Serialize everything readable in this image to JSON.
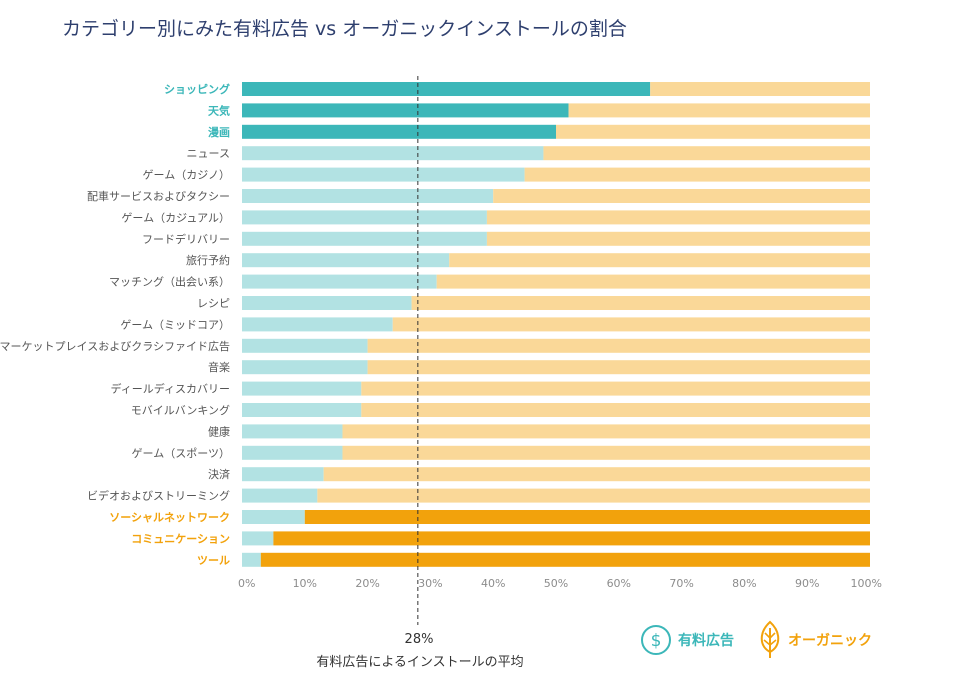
{
  "title": "カテゴリー別にみた有料広告 vs オーガニックインストールの割合",
  "average": {
    "value_label": "28%",
    "text": "有料広告によるインストールの平均",
    "value": 28
  },
  "legend": {
    "paid": "有料広告",
    "organic": "オーガニック"
  },
  "colors": {
    "title": "#2e3f6e",
    "paid_light": "#b2e2e3",
    "paid_dark": "#3cb7b9",
    "organic_light": "#fad898",
    "organic_dark": "#f2a20c",
    "label_default": "#555555"
  },
  "chart_data": {
    "type": "bar",
    "orientation": "horizontal",
    "stacked": true,
    "title": "カテゴリー別にみた有料広告 vs オーガニックインストールの割合",
    "xlim": [
      0,
      100
    ],
    "x_ticks": [
      "0%",
      "10%",
      "20%",
      "30%",
      "40%",
      "50%",
      "60%",
      "70%",
      "80%",
      "90%",
      "100%"
    ],
    "reference_line": {
      "value": 28,
      "label": "28%"
    },
    "categories": [
      "ショッピング",
      "天気",
      "漫画",
      "ニュース",
      "ゲーム（カジノ）",
      "配車サービスおよびタクシー",
      "ゲーム（カジュアル）",
      "フードデリバリー",
      "旅行予約",
      "マッチング（出会い系）",
      "レシピ",
      "ゲーム（ミッドコア）",
      "マーケットプレイスおよびクラシファイド広告",
      "音楽",
      "ディールディスカバリー",
      "モバイルバンキング",
      "健康",
      "ゲーム（スポーツ）",
      "決済",
      "ビデオおよびストリーミング",
      "ソーシャルネットワーク",
      "コミュニケーション",
      "ツール"
    ],
    "highlight": [
      "paid",
      "paid",
      "paid",
      "none",
      "none",
      "none",
      "none",
      "none",
      "none",
      "none",
      "none",
      "none",
      "none",
      "none",
      "none",
      "none",
      "none",
      "none",
      "none",
      "none",
      "organic",
      "organic",
      "organic"
    ],
    "series": [
      {
        "name": "有料広告",
        "values": [
          65,
          52,
          50,
          48,
          45,
          40,
          39,
          39,
          33,
          31,
          27,
          24,
          20,
          20,
          19,
          19,
          16,
          16,
          13,
          12,
          10,
          5,
          3
        ]
      },
      {
        "name": "オーガニック",
        "values": [
          35,
          48,
          50,
          52,
          55,
          60,
          61,
          61,
          67,
          69,
          73,
          76,
          80,
          80,
          81,
          81,
          84,
          84,
          87,
          88,
          90,
          95,
          97
        ]
      }
    ]
  }
}
